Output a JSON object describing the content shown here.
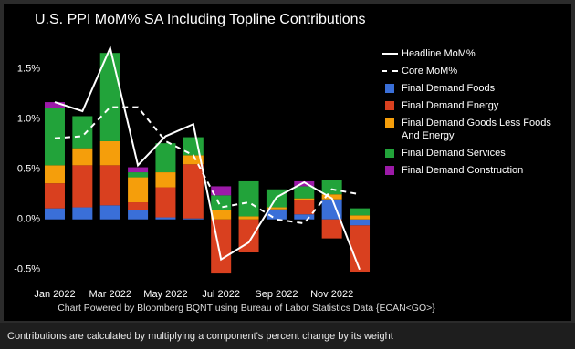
{
  "chart_data": {
    "type": "bar",
    "title": "U.S. PPI MoM% SA Including Topline Contributions",
    "source": "Chart Powered by Bloomberg BQNT using Bureau of Labor Statistics Data    {ECAN<GO>}",
    "footnote": "Contributions are calculated by multiplying a component's percent change by its weight",
    "categories": [
      "Jan 2022",
      null,
      "Mar 2022",
      null,
      "May 2022",
      null,
      "Jul 2022",
      null,
      "Sep 2022",
      null,
      "Nov 2022",
      null
    ],
    "ylim": [
      -0.63,
      1.78
    ],
    "yticks": [
      {
        "value": -0.5,
        "label": "-0.5%"
      },
      {
        "value": 0,
        "label": "0.0%"
      },
      {
        "value": 0.5,
        "label": "0.5%"
      },
      {
        "value": 1,
        "label": "1.0%"
      },
      {
        "value": 1.5,
        "label": "1.5%"
      }
    ],
    "grid": false,
    "legend": "right",
    "series": [
      {
        "name": "Headline MoM%",
        "type": "line",
        "dash": false,
        "color": "#ffffff",
        "values": [
          1.17,
          1.08,
          1.71,
          0.54,
          0.83,
          0.95,
          -0.4,
          -0.23,
          0.22,
          0.37,
          0.21,
          -0.5
        ]
      },
      {
        "name": "Core MoM%",
        "type": "line",
        "dash": true,
        "color": "#ffffff",
        "values": [
          0.81,
          0.83,
          1.12,
          1.12,
          0.78,
          0.64,
          0.12,
          0.17,
          0.0,
          -0.04,
          0.3,
          0.25
        ]
      },
      {
        "name": "Final Demand Foods",
        "type": "bar",
        "color": "#3a6fd8",
        "values": [
          0.11,
          0.12,
          0.14,
          0.09,
          0.02,
          0.01,
          0.0,
          0.0,
          0.1,
          0.05,
          0.2,
          -0.06
        ]
      },
      {
        "name": "Final Demand Energy",
        "type": "bar",
        "color": "#d9401f",
        "values": [
          0.25,
          0.42,
          0.4,
          0.08,
          0.3,
          0.54,
          -0.54,
          -0.33,
          0.0,
          0.14,
          -0.19,
          -0.47
        ]
      },
      {
        "name": "Final Demand Goods Less Foods And Energy",
        "type": "bar",
        "color": "#f59e0b",
        "values": [
          0.18,
          0.17,
          0.24,
          0.25,
          0.15,
          0.09,
          0.09,
          0.03,
          0.02,
          0.02,
          0.05,
          0.04
        ]
      },
      {
        "name": "Final Demand Services",
        "type": "bar",
        "color": "#22a33a",
        "values": [
          0.57,
          0.32,
          0.88,
          0.05,
          0.29,
          0.18,
          0.15,
          0.35,
          0.18,
          0.12,
          0.14,
          0.07
        ]
      },
      {
        "name": "Final Demand Construction",
        "type": "bar",
        "color": "#9c1aa8",
        "values": [
          0.06,
          0.0,
          0.0,
          0.05,
          0.0,
          0.0,
          0.09,
          0.0,
          0.0,
          0.05,
          0.0,
          0.0
        ]
      }
    ]
  }
}
